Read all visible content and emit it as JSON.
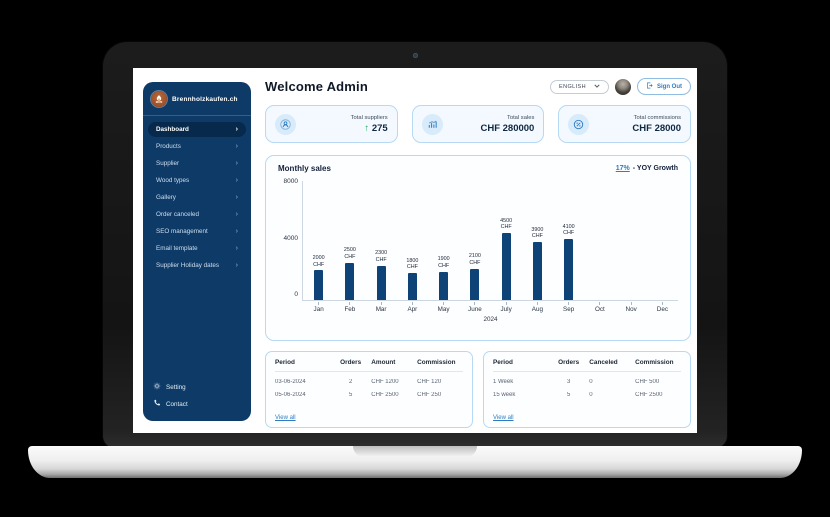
{
  "colors": {
    "accent": "#2e7dc2",
    "sidebar_bg": "#0d3a66",
    "sidebar_active": "#072a4c",
    "bar": "#0e4377",
    "positive": "#27ae60",
    "card_border": "#b7d9f3",
    "stat_bg": "#f3f9fe"
  },
  "app": {
    "brand": "Brennholzkaufen.ch"
  },
  "header": {
    "title": "Welcome Admin",
    "language": "ENGLISH",
    "sign_out_label": "Sign Out"
  },
  "sidebar": {
    "items": [
      {
        "label": "Dashboard",
        "active": true
      },
      {
        "label": "Products"
      },
      {
        "label": "Supplier"
      },
      {
        "label": "Wood types"
      },
      {
        "label": "Gallery"
      },
      {
        "label": "Order canceled"
      },
      {
        "label": "SEO management"
      },
      {
        "label": "Email template"
      },
      {
        "label": "Supplier Holiday dates"
      }
    ],
    "footer": [
      {
        "label": "Setting",
        "icon": "gear-icon"
      },
      {
        "label": "Contact",
        "icon": "phone-icon"
      }
    ]
  },
  "stats": [
    {
      "label": "Total suppliers",
      "trend_icon": "↑",
      "value": "275",
      "icon": "suppliers-icon"
    },
    {
      "label": "Total sales",
      "value": "CHF 280000",
      "icon": "sales-icon"
    },
    {
      "label": "Total commissions",
      "value": "CHF 28000",
      "icon": "commissions-icon"
    }
  ],
  "chart_data": {
    "type": "bar",
    "title": "Monthly sales",
    "growth_value": "17%",
    "growth_label": "- YOY Growth",
    "categories": [
      "Jan",
      "Feb",
      "Mar",
      "Apr",
      "May",
      "June",
      "July",
      "Aug",
      "Sep",
      "Oct",
      "Nov",
      "Dec"
    ],
    "values": [
      2000,
      2500,
      2300,
      1800,
      1900,
      2100,
      4500,
      3900,
      4100,
      0,
      0,
      0
    ],
    "bar_labels": [
      "2000 CHF",
      "2500 CHF",
      "2300 CHF",
      "1800 CHF",
      "1900 CHF",
      "2100 CHF",
      "4500 CHF",
      "3900 CHF",
      "4100 CHF",
      "",
      "",
      ""
    ],
    "y_ticks": [
      "8000",
      "4000",
      "0"
    ],
    "ylim": [
      0,
      8000
    ],
    "xlabel": "2024",
    "grid": false,
    "legend": "none",
    "bar_color": "#0e4377"
  },
  "tables": {
    "orders": {
      "headers": [
        "Period",
        "Orders",
        "Amount",
        "Commission"
      ],
      "rows": [
        [
          "03-06-2024",
          "2",
          "CHF 1200",
          "CHF 120"
        ],
        [
          "05-06-2024",
          "5",
          "CHF 2500",
          "CHF 250"
        ]
      ],
      "link": "View all"
    },
    "weekly": {
      "headers": [
        "Period",
        "Orders",
        "Canceled",
        "Commission"
      ],
      "rows": [
        [
          "1 Week",
          "3",
          "0",
          "CHF 500"
        ],
        [
          "15 week",
          "5",
          "0",
          "CHF 2500"
        ]
      ],
      "link": "View all"
    }
  }
}
